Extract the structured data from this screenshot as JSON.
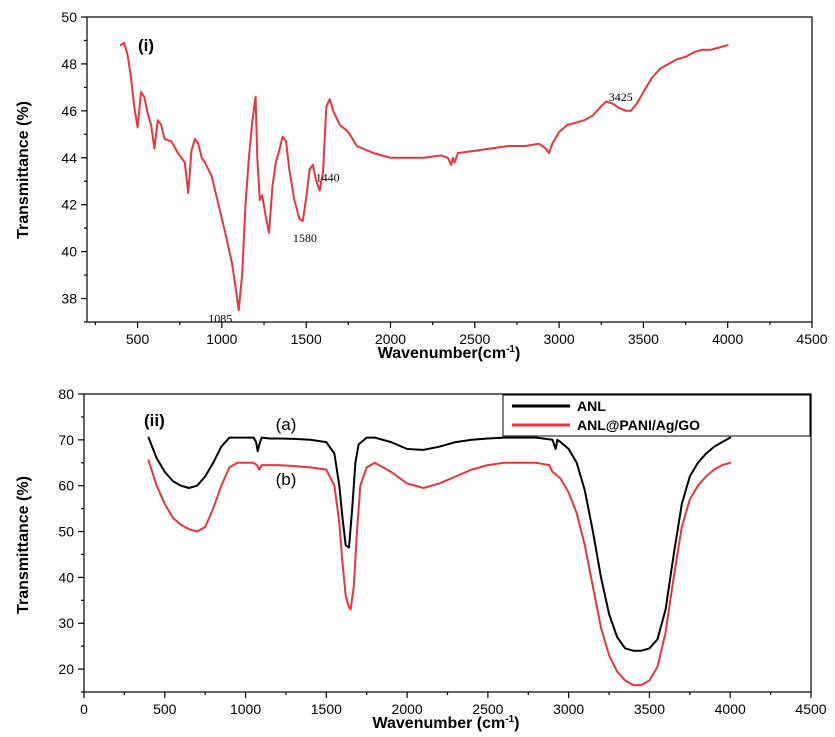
{
  "chart_data": [
    {
      "type": "line",
      "panel_label": "(i)",
      "xlabel": "Wavenumber(cm",
      "xlabel_sup": "-1",
      "xlabel_end": ")",
      "ylabel": "Transmittance (%)",
      "xlim": [
        200,
        4500
      ],
      "ylim": [
        37,
        50
      ],
      "xticks": [
        500,
        1000,
        1500,
        2000,
        2500,
        3000,
        3500,
        4000,
        4500
      ],
      "yticks": [
        38,
        40,
        42,
        44,
        46,
        48,
        50
      ],
      "grid": false,
      "series": [
        {
          "color": "#e8343a",
          "x": [
            400,
            420,
            440,
            460,
            480,
            500,
            520,
            540,
            560,
            580,
            600,
            620,
            640,
            660,
            700,
            740,
            780,
            800,
            820,
            840,
            860,
            880,
            900,
            940,
            980,
            1020,
            1060,
            1085,
            1100,
            1120,
            1140,
            1160,
            1180,
            1200,
            1210,
            1225,
            1240,
            1260,
            1280,
            1300,
            1320,
            1340,
            1360,
            1380,
            1400,
            1430,
            1460,
            1480,
            1500,
            1520,
            1540,
            1560,
            1580,
            1600,
            1620,
            1640,
            1660,
            1700,
            1750,
            1800,
            1900,
            2000,
            2100,
            2200,
            2300,
            2340,
            2360,
            2370,
            2380,
            2400,
            2500,
            2600,
            2700,
            2800,
            2880,
            2920,
            2940,
            2960,
            3000,
            3050,
            3100,
            3150,
            3200,
            3250,
            3280,
            3320,
            3360,
            3400,
            3425,
            3460,
            3500,
            3550,
            3600,
            3650,
            3700,
            3750,
            3800,
            3850,
            3900,
            3950,
            4000
          ],
          "values": [
            48.8,
            48.9,
            48.4,
            47.5,
            46.2,
            45.3,
            46.8,
            46.6,
            45.9,
            45.4,
            44.4,
            45.6,
            45.4,
            44.8,
            44.7,
            44.2,
            43.8,
            42.5,
            44.3,
            44.8,
            44.6,
            44.0,
            43.8,
            43.2,
            42.0,
            40.8,
            39.5,
            38.3,
            37.5,
            39.0,
            42.0,
            44.0,
            45.5,
            46.6,
            44.0,
            42.2,
            42.4,
            41.5,
            40.8,
            42.8,
            43.8,
            44.3,
            44.9,
            44.7,
            43.5,
            42.2,
            41.4,
            41.3,
            42.3,
            43.5,
            43.7,
            43.0,
            42.6,
            43.4,
            46.2,
            46.5,
            46.0,
            45.4,
            45.1,
            44.5,
            44.2,
            44.0,
            44.0,
            44.0,
            44.1,
            44.0,
            43.7,
            44.0,
            43.8,
            44.2,
            44.3,
            44.4,
            44.5,
            44.5,
            44.6,
            44.4,
            44.2,
            44.6,
            45.1,
            45.4,
            45.5,
            45.6,
            45.8,
            46.2,
            46.4,
            46.3,
            46.1,
            46.0,
            46.0,
            46.3,
            46.8,
            47.4,
            47.8,
            48.0,
            48.2,
            48.3,
            48.5,
            48.6,
            48.6,
            48.7,
            48.8
          ]
        }
      ],
      "annotations": [
        {
          "text": "1085",
          "x": 1085,
          "y": 37.5
        },
        {
          "text": "1580",
          "x": 1480,
          "y": 41.0
        },
        {
          "text": "1440",
          "x": 1580,
          "y": 42.4
        },
        {
          "text": "3425",
          "x": 3425,
          "y": 46.0
        }
      ]
    },
    {
      "type": "line",
      "panel_label": "(ii)",
      "xlabel": "Wavenumber (cm",
      "xlabel_sup": "-1",
      "xlabel_end": ")",
      "ylabel": "Transmittance (%)",
      "xlim": [
        0,
        4500
      ],
      "ylim": [
        15,
        80
      ],
      "xticks": [
        0,
        500,
        1000,
        1500,
        2000,
        2500,
        3000,
        3500,
        4000,
        4500
      ],
      "yticks": [
        20,
        30,
        40,
        50,
        60,
        70,
        80
      ],
      "grid": false,
      "legend_position": "top-right",
      "series": [
        {
          "name": "ANL",
          "color": "#000000",
          "x": [
            400,
            450,
            500,
            550,
            600,
            650,
            700,
            750,
            800,
            850,
            900,
            950,
            1000,
            1050,
            1065,
            1075,
            1085,
            1100,
            1150,
            1200,
            1300,
            1400,
            1500,
            1550,
            1580,
            1600,
            1620,
            1640,
            1660,
            1680,
            1700,
            1750,
            1800,
            1900,
            2000,
            2100,
            2200,
            2300,
            2400,
            2500,
            2600,
            2700,
            2800,
            2900,
            2920,
            2930,
            2950,
            3000,
            3050,
            3100,
            3150,
            3200,
            3250,
            3300,
            3350,
            3400,
            3450,
            3500,
            3550,
            3600,
            3650,
            3700,
            3750,
            3800,
            3850,
            3900,
            3950,
            4000
          ],
          "values": [
            70.5,
            66.0,
            63.0,
            61.0,
            60.0,
            59.5,
            60.0,
            62.0,
            65.0,
            68.5,
            70.5,
            70.5,
            70.5,
            70.5,
            69.5,
            67.5,
            69.0,
            70.5,
            70.3,
            70.3,
            70.2,
            70.0,
            69.5,
            67.0,
            60.0,
            53.0,
            47.0,
            46.5,
            55.0,
            65.0,
            69.0,
            70.5,
            70.5,
            69.5,
            68.0,
            67.8,
            68.5,
            69.5,
            70.0,
            70.3,
            70.5,
            70.5,
            70.5,
            70.0,
            68.0,
            70.0,
            69.5,
            68.0,
            65.0,
            59.0,
            50.0,
            40.0,
            32.0,
            27.0,
            24.5,
            24.0,
            24.0,
            24.5,
            26.5,
            33.0,
            45.0,
            56.0,
            62.0,
            65.0,
            67.0,
            68.5,
            69.5,
            70.5
          ]
        },
        {
          "name": "ANL@PANI/Ag/GO",
          "color": "#e8343a",
          "x": [
            400,
            450,
            500,
            550,
            600,
            650,
            700,
            750,
            800,
            850,
            900,
            950,
            1000,
            1050,
            1070,
            1085,
            1100,
            1150,
            1200,
            1300,
            1400,
            1500,
            1550,
            1580,
            1600,
            1620,
            1640,
            1650,
            1670,
            1690,
            1710,
            1750,
            1800,
            1900,
            2000,
            2100,
            2200,
            2300,
            2400,
            2500,
            2600,
            2700,
            2800,
            2880,
            2900,
            2920,
            2950,
            3000,
            3050,
            3100,
            3150,
            3200,
            3250,
            3300,
            3350,
            3400,
            3450,
            3500,
            3550,
            3600,
            3650,
            3700,
            3750,
            3800,
            3850,
            3900,
            3950,
            4000
          ],
          "values": [
            65.5,
            60.0,
            56.0,
            53.0,
            51.5,
            50.5,
            50.0,
            51.0,
            55.0,
            60.0,
            64.0,
            65.0,
            65.0,
            65.0,
            64.5,
            63.5,
            64.5,
            64.5,
            64.5,
            64.3,
            64.0,
            63.5,
            60.0,
            52.0,
            43.0,
            36.0,
            33.5,
            33.0,
            38.0,
            50.0,
            60.0,
            64.0,
            65.0,
            63.0,
            60.5,
            59.5,
            60.5,
            62.0,
            63.5,
            64.5,
            65.0,
            65.0,
            65.0,
            64.5,
            63.0,
            62.5,
            61.5,
            58.5,
            54.0,
            47.0,
            38.0,
            29.0,
            23.0,
            19.5,
            17.5,
            16.5,
            16.5,
            17.5,
            20.5,
            28.0,
            40.0,
            51.0,
            57.0,
            60.0,
            62.0,
            63.5,
            64.5,
            65.0
          ]
        }
      ],
      "annotations": [
        {
          "text": "(a)",
          "x": 1310,
          "y": 73.5
        },
        {
          "text": "(b)",
          "x": 1310,
          "y": 61.5
        }
      ]
    }
  ]
}
